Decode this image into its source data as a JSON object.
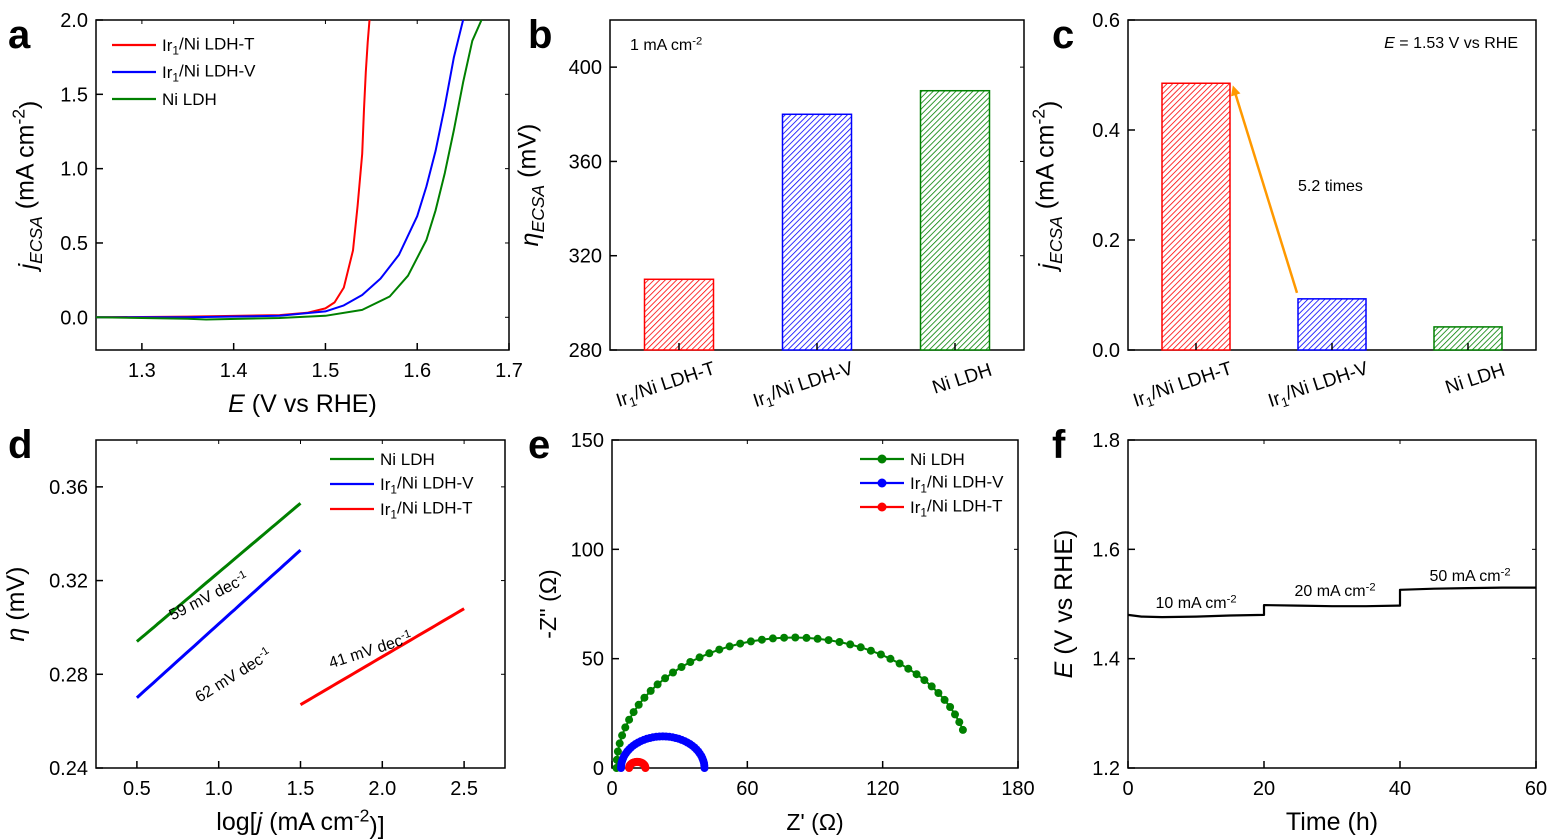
{
  "chart_data": [
    {
      "panel": "a",
      "type": "line",
      "xlabel": "E (V vs RHE)",
      "ylabel": "jECSA (mA cm-2)",
      "xlim": [
        1.25,
        1.7
      ],
      "ylim": [
        -0.22,
        2.0
      ],
      "xticks": [
        1.3,
        1.4,
        1.5,
        1.6,
        1.7
      ],
      "yticks": [
        0.0,
        0.5,
        1.0,
        1.5,
        2.0
      ],
      "legend_position": "top-left",
      "series": [
        {
          "name": "Ir1/Ni LDH-T",
          "color": "#ff0000",
          "x": [
            1.25,
            1.35,
            1.45,
            1.48,
            1.5,
            1.51,
            1.52,
            1.53,
            1.535,
            1.54,
            1.542,
            1.544,
            1.546,
            1.548
          ],
          "y": [
            0.0,
            0.005,
            0.015,
            0.03,
            0.06,
            0.1,
            0.2,
            0.45,
            0.75,
            1.1,
            1.4,
            1.65,
            1.85,
            2.0
          ]
        },
        {
          "name": "Ir1/Ni LDH-V",
          "color": "#0000ff",
          "x": [
            1.25,
            1.35,
            1.45,
            1.5,
            1.52,
            1.54,
            1.56,
            1.58,
            1.6,
            1.61,
            1.62,
            1.63,
            1.64,
            1.65
          ],
          "y": [
            0.0,
            0.0,
            0.01,
            0.04,
            0.08,
            0.15,
            0.26,
            0.42,
            0.68,
            0.88,
            1.12,
            1.42,
            1.75,
            2.0
          ]
        },
        {
          "name": "Ni LDH",
          "color": "#008000",
          "x": [
            1.25,
            1.3,
            1.35,
            1.37,
            1.45,
            1.5,
            1.54,
            1.57,
            1.59,
            1.61,
            1.62,
            1.63,
            1.64,
            1.65,
            1.66,
            1.67
          ],
          "y": [
            0.0,
            -0.005,
            -0.01,
            -0.015,
            -0.005,
            0.01,
            0.05,
            0.14,
            0.28,
            0.52,
            0.72,
            0.97,
            1.26,
            1.58,
            1.86,
            2.0
          ]
        }
      ]
    },
    {
      "panel": "b",
      "type": "bar",
      "ylabel": "ηECSA (mV)",
      "ylim": [
        280,
        420
      ],
      "yticks": [
        280,
        320,
        360,
        400
      ],
      "annotation": "1 mA cm-2",
      "categories": [
        "Ir1/Ni LDH-T",
        "Ir1/Ni LDH-V",
        "Ni LDH"
      ],
      "values": [
        310,
        380,
        390
      ],
      "colors": [
        "#ff0000",
        "#0000ff",
        "#008000"
      ]
    },
    {
      "panel": "c",
      "type": "bar",
      "ylabel": "jECSA (mA cm-2)",
      "ylim": [
        0.0,
        0.6
      ],
      "yticks": [
        0.0,
        0.2,
        0.4,
        0.6
      ],
      "annotation": "E = 1.53 V vs RHE",
      "arrow_label": "5.2 times",
      "categories": [
        "Ir1/Ni LDH-T",
        "Ir1/Ni LDH-V",
        "Ni LDH"
      ],
      "values": [
        0.485,
        0.093,
        0.042
      ],
      "colors": [
        "#ff0000",
        "#0000ff",
        "#008000"
      ]
    },
    {
      "panel": "d",
      "type": "line",
      "xlabel": "log[j (mA cm-2)]",
      "ylabel": "η (mV)",
      "xlim": [
        0.25,
        2.75
      ],
      "ylim": [
        0.24,
        0.38
      ],
      "xticks": [
        0.5,
        1.0,
        1.5,
        2.0,
        2.5
      ],
      "yticks": [
        0.24,
        0.28,
        0.32,
        0.36
      ],
      "legend_position": "top-right",
      "series": [
        {
          "name": "Ni LDH",
          "color": "#008000",
          "x": [
            0.5,
            1.5
          ],
          "y": [
            0.294,
            0.353
          ],
          "slope_label": "59 mV  dec-1"
        },
        {
          "name": "Ir1/Ni LDH-V",
          "color": "#0000ff",
          "x": [
            0.5,
            1.5
          ],
          "y": [
            0.27,
            0.333
          ],
          "slope_label": "62 mV dec-1"
        },
        {
          "name": "Ir1/Ni LDH-T",
          "color": "#ff0000",
          "x": [
            1.5,
            2.5
          ],
          "y": [
            0.267,
            0.308
          ],
          "slope_label": "41 mV dec-1"
        }
      ]
    },
    {
      "panel": "e",
      "type": "scatter",
      "xlabel": "Z' (Ω)",
      "ylabel": "-Z'' (Ω)",
      "xlim": [
        0,
        180
      ],
      "ylim": [
        0,
        150
      ],
      "xticks": [
        0,
        60,
        120,
        180
      ],
      "yticks": [
        0,
        50,
        100,
        150
      ],
      "legend_position": "top-right",
      "series": [
        {
          "name": "Ni LDH",
          "color": "#008000",
          "center": 80.5,
          "radius": 78.5,
          "end_angle_deg": 163
        },
        {
          "name": "Ir1/Ni LDH-V",
          "color": "#0000ff",
          "center": 22.5,
          "radius": 18.5,
          "end_angle_deg": 180
        },
        {
          "name": "Ir1/Ni LDH-T",
          "color": "#ff0000",
          "center": 11.2,
          "radius": 3.6,
          "end_angle_deg": 180
        }
      ]
    },
    {
      "panel": "f",
      "type": "line",
      "xlabel": "Time (h)",
      "ylabel": "E (V vs RHE)",
      "xlim": [
        0,
        60
      ],
      "ylim": [
        1.2,
        1.8
      ],
      "xticks": [
        0,
        20,
        40,
        60
      ],
      "yticks": [
        1.2,
        1.4,
        1.6,
        1.8
      ],
      "annotations": [
        "10 mA cm-2",
        "20 mA cm-2",
        "50 mA cm-2"
      ],
      "series": [
        {
          "name": "",
          "color": "#000000",
          "x": [
            0,
            2,
            5,
            10,
            15,
            20,
            20,
            25,
            30,
            35,
            40,
            40,
            45,
            50,
            55,
            60
          ],
          "y": [
            1.48,
            1.477,
            1.476,
            1.477,
            1.479,
            1.48,
            1.498,
            1.497,
            1.496,
            1.496,
            1.497,
            1.526,
            1.528,
            1.529,
            1.53,
            1.53
          ]
        }
      ]
    }
  ]
}
